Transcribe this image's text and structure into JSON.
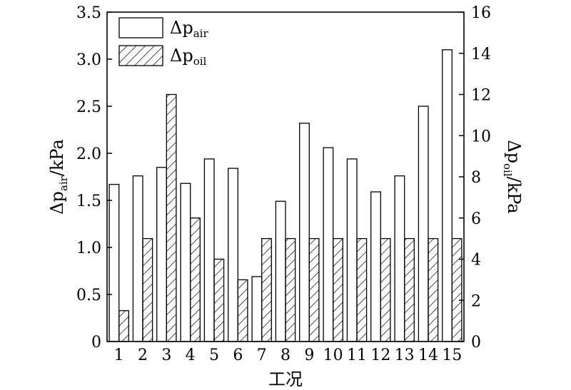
{
  "chart_data": {
    "type": "bar",
    "xlabel": "工况",
    "categories": [
      "1",
      "2",
      "3",
      "4",
      "5",
      "6",
      "7",
      "8",
      "9",
      "10",
      "11",
      "12",
      "13",
      "14",
      "15"
    ],
    "series": [
      {
        "name": "Δp_air",
        "name_main": "Δp",
        "name_sub": "air",
        "axis": "left",
        "fill": "none",
        "values": [
          1.67,
          1.76,
          1.85,
          1.68,
          1.94,
          1.84,
          0.69,
          1.49,
          2.32,
          2.06,
          1.94,
          1.59,
          1.76,
          2.5,
          3.1
        ]
      },
      {
        "name": "Δp_oil",
        "name_main": "Δp",
        "name_sub": "oil",
        "axis": "right",
        "fill": "hatch",
        "values": [
          1.5,
          5.0,
          12.0,
          6.0,
          4.0,
          3.0,
          5.0,
          5.0,
          5.0,
          5.0,
          5.0,
          5.0,
          5.0,
          5.0,
          5.0
        ]
      }
    ],
    "y_left": {
      "label_main": "Δp",
      "label_sub": "air",
      "label_unit": "/kPa",
      "ylim": [
        0,
        3.5
      ],
      "ticks": [
        "0",
        "0.5",
        "1.0",
        "1.5",
        "2.0",
        "2.5",
        "3.0",
        "3.5"
      ]
    },
    "y_right": {
      "label_main": "Δp",
      "label_sub": "oil",
      "label_unit": "/kPa",
      "ylim": [
        0,
        16
      ],
      "ticks": [
        "0",
        "2",
        "4",
        "6",
        "8",
        "10",
        "12",
        "14",
        "16"
      ]
    },
    "legend_position": "top-left",
    "grid": false
  }
}
